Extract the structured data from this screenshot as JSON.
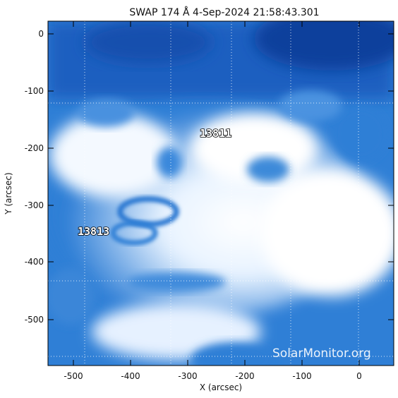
{
  "title": "SWAP 174 Å  4-Sep-2024 21:58:43.301",
  "xlabel": "X (arcsec)",
  "ylabel": "Y (arcsec)",
  "x_ticks": [
    "-500",
    "-400",
    "-300",
    "-200",
    "-100",
    "0"
  ],
  "y_ticks": [
    "0",
    "-100",
    "-200",
    "-300",
    "-400",
    "-500"
  ],
  "active_regions": [
    {
      "label": "13811"
    },
    {
      "label": "13813"
    }
  ],
  "watermark": "SolarMonitor.org",
  "colors": {
    "plot_base": "#2f7fd6",
    "plot_dark": "#0a3f9c",
    "plot_bright": "#ffffff",
    "grid": "#ffffff"
  }
}
